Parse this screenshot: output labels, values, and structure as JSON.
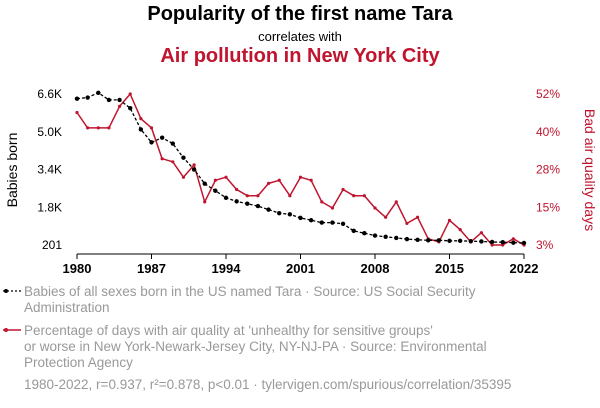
{
  "header": {
    "title": "Popularity of the first name Tara",
    "subtitle": "correlates with",
    "title2": "Air pollution in New York City"
  },
  "colors": {
    "series1": "#000000",
    "series2": "#c0152f",
    "legend_text": "#999999"
  },
  "chart_data": {
    "type": "line",
    "x": [
      1980,
      1981,
      1982,
      1983,
      1984,
      1985,
      1986,
      1987,
      1988,
      1989,
      1990,
      1991,
      1992,
      1993,
      1994,
      1995,
      1996,
      1997,
      1998,
      1999,
      2000,
      2001,
      2002,
      2003,
      2004,
      2005,
      2006,
      2007,
      2008,
      2009,
      2010,
      2011,
      2012,
      2013,
      2014,
      2015,
      2016,
      2017,
      2018,
      2019,
      2020,
      2021,
      2022
    ],
    "x_ticks": [
      "1980",
      "1987",
      "1994",
      "2001",
      "2008",
      "2015",
      "2022"
    ],
    "y_left_ticks": [
      "201",
      "1.8K",
      "3.4K",
      "5.0K",
      "6.6K"
    ],
    "y_left_label": "Babies born",
    "y_left_lim": [
      201,
      6600
    ],
    "y_right_ticks": [
      "3%",
      "15%",
      "28%",
      "40%",
      "52%"
    ],
    "y_right_label": "Bad air quality days",
    "y_right_lim": [
      3,
      52
    ],
    "series": [
      {
        "name": "Babies of all sexes born in the US named Tara",
        "axis": "left",
        "values": [
          6400,
          6450,
          6650,
          6350,
          6350,
          6000,
          5100,
          4550,
          4750,
          4500,
          3900,
          3400,
          2800,
          2500,
          2200,
          2050,
          1950,
          1850,
          1700,
          1550,
          1500,
          1350,
          1250,
          1150,
          1150,
          1100,
          800,
          700,
          600,
          550,
          500,
          450,
          420,
          400,
          400,
          380,
          380,
          360,
          350,
          330,
          320,
          300,
          290
        ]
      },
      {
        "name": "Percentage of days with air quality at 'unhealthy for sensitive groups' or worse in New York-Newark-Jersey City, NY-NJ-PA",
        "axis": "right",
        "values": [
          46,
          41,
          41,
          41,
          48,
          52,
          44,
          41,
          31,
          30,
          25,
          29,
          17,
          24,
          25,
          21,
          19,
          19,
          23,
          24,
          19,
          25,
          24,
          17,
          15,
          21,
          19,
          19,
          15,
          12,
          17,
          10,
          12,
          5,
          4,
          11,
          8,
          4,
          7,
          3,
          3,
          5,
          3
        ]
      }
    ]
  },
  "legend": {
    "line1": "Babies of all sexes born in the US named Tara · Source: US Social Security",
    "line2": "Administration",
    "line3": "Percentage of days with air quality at 'unhealthy for sensitive groups'",
    "line4": "or worse in New York-Newark-Jersey City, NY-NJ-PA · Source: Environmental",
    "line5": "Protection Agency"
  },
  "footer": "1980-2022, r=0.937, r²=0.878, p<0.01 · tylervigen.com/spurious/correlation/35395"
}
